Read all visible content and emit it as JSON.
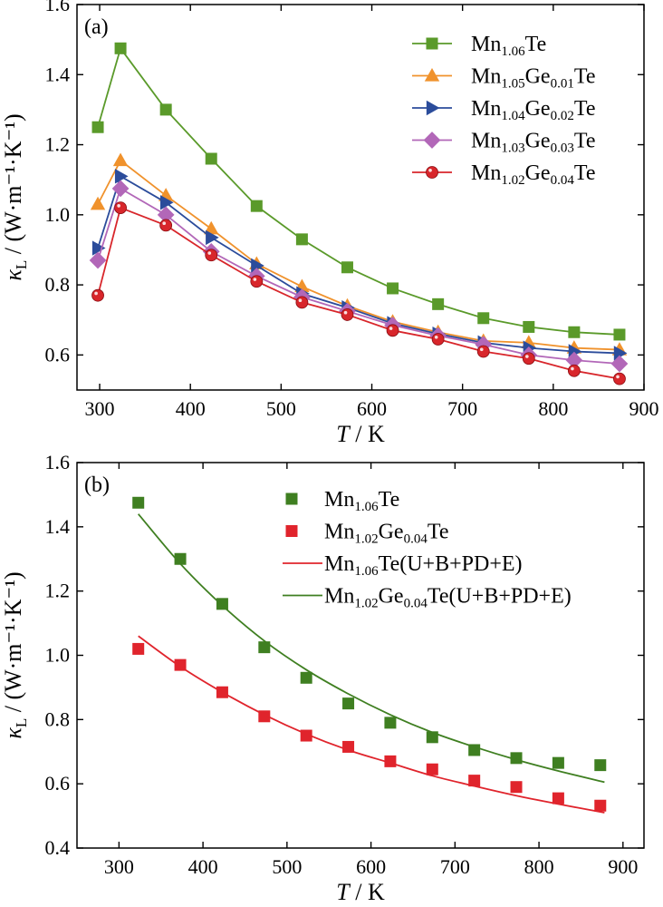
{
  "chart_data": [
    {
      "panel": "(a)",
      "type": "line",
      "xlabel": {
        "var": "T",
        "unit": " / K"
      },
      "ylabel": {
        "var": "κ",
        "sub": "L",
        "unit": " / (W·m⁻¹·K⁻¹)"
      },
      "xlim": [
        275,
        900
      ],
      "ylim": [
        0.5,
        1.6
      ],
      "xticks": [
        300,
        400,
        500,
        600,
        700,
        800,
        900
      ],
      "yticks": [
        0.6,
        0.8,
        1.0,
        1.2,
        1.4,
        1.6
      ],
      "legend_position": "top-right",
      "series": [
        {
          "name": "Mn1.06Te",
          "legend": [
            [
              "Mn",
              ""
            ],
            [
              "1.06",
              "sub"
            ],
            [
              "Te",
              ""
            ]
          ],
          "color": "#5a9a2a",
          "marker": "square",
          "x": [
            298,
            323,
            373,
            423,
            473,
            523,
            573,
            623,
            673,
            723,
            773,
            823,
            873
          ],
          "y": [
            1.25,
            1.475,
            1.3,
            1.16,
            1.025,
            0.93,
            0.85,
            0.79,
            0.745,
            0.705,
            0.68,
            0.665,
            0.658
          ]
        },
        {
          "name": "Mn1.05Ge0.01Te",
          "legend": [
            [
              "Mn",
              ""
            ],
            [
              "1.05",
              "sub"
            ],
            [
              "Ge",
              ""
            ],
            [
              "0.01",
              "sub"
            ],
            [
              "Te",
              ""
            ]
          ],
          "color": "#f0922c",
          "marker": "triangle-up",
          "x": [
            298,
            323,
            373,
            423,
            473,
            523,
            573,
            623,
            673,
            723,
            773,
            823,
            873
          ],
          "y": [
            1.03,
            1.155,
            1.055,
            0.96,
            0.86,
            0.795,
            0.74,
            0.695,
            0.665,
            0.64,
            0.635,
            0.62,
            0.615
          ]
        },
        {
          "name": "Mn1.04Ge0.02Te",
          "legend": [
            [
              "Mn",
              ""
            ],
            [
              "1.04",
              "sub"
            ],
            [
              "Ge",
              ""
            ],
            [
              "0.02",
              "sub"
            ],
            [
              "Te",
              ""
            ]
          ],
          "color": "#2b4c9b",
          "marker": "triangle-right",
          "x": [
            298,
            323,
            373,
            423,
            473,
            523,
            573,
            623,
            673,
            723,
            773,
            823,
            873
          ],
          "y": [
            0.905,
            1.11,
            1.035,
            0.935,
            0.855,
            0.775,
            0.735,
            0.69,
            0.66,
            0.635,
            0.62,
            0.61,
            0.605
          ]
        },
        {
          "name": "Mn1.03Ge0.03Te",
          "legend": [
            [
              "Mn",
              ""
            ],
            [
              "1.03",
              "sub"
            ],
            [
              "Ge",
              ""
            ],
            [
              "0.03",
              "sub"
            ],
            [
              "Te",
              ""
            ]
          ],
          "color": "#b267b8",
          "marker": "diamond",
          "x": [
            298,
            323,
            373,
            423,
            473,
            523,
            573,
            623,
            673,
            723,
            773,
            823,
            873
          ],
          "y": [
            0.87,
            1.075,
            1.0,
            0.895,
            0.825,
            0.765,
            0.725,
            0.685,
            0.655,
            0.63,
            0.6,
            0.585,
            0.575
          ]
        },
        {
          "name": "Mn1.02Ge0.04Te",
          "legend": [
            [
              "Mn",
              ""
            ],
            [
              "1.02",
              "sub"
            ],
            [
              "Ge",
              ""
            ],
            [
              "0.04",
              "sub"
            ],
            [
              "Te",
              ""
            ]
          ],
          "color": "#d8262b",
          "marker": "circle",
          "x": [
            298,
            323,
            373,
            423,
            473,
            523,
            573,
            623,
            673,
            723,
            773,
            823,
            873
          ],
          "y": [
            0.77,
            1.02,
            0.97,
            0.885,
            0.81,
            0.75,
            0.715,
            0.67,
            0.645,
            0.61,
            0.59,
            0.555,
            0.532
          ]
        }
      ]
    },
    {
      "panel": "(b)",
      "type": "scatter",
      "xlabel": {
        "var": "T",
        "unit": " / K"
      },
      "ylabel": {
        "var": "κ",
        "sub": "L",
        "unit": " / (W·m⁻¹·K⁻¹)"
      },
      "xlim": [
        250,
        925
      ],
      "ylim": [
        0.4,
        1.6
      ],
      "xticks": [
        300,
        400,
        500,
        600,
        700,
        800,
        900
      ],
      "yticks": [
        0.4,
        0.6,
        0.8,
        1.0,
        1.2,
        1.4,
        1.6
      ],
      "legend_position": "top-right",
      "series": [
        {
          "name": "Mn1.06Te",
          "legend": [
            [
              "Mn",
              ""
            ],
            [
              "1.06",
              "sub"
            ],
            [
              "Te",
              ""
            ]
          ],
          "color": "#3f7f21",
          "marker": "square",
          "style": "points",
          "x": [
            323,
            373,
            423,
            473,
            523,
            573,
            623,
            673,
            723,
            773,
            823,
            873
          ],
          "y": [
            1.475,
            1.3,
            1.16,
            1.025,
            0.93,
            0.85,
            0.79,
            0.745,
            0.705,
            0.68,
            0.665,
            0.658
          ]
        },
        {
          "name": "Mn1.02Ge0.04Te",
          "legend": [
            [
              "Mn",
              ""
            ],
            [
              "1.02",
              "sub"
            ],
            [
              "Ge",
              ""
            ],
            [
              "0.04",
              "sub"
            ],
            [
              "Te",
              ""
            ]
          ],
          "color": "#e0242c",
          "marker": "square",
          "style": "points",
          "x": [
            323,
            373,
            423,
            473,
            523,
            573,
            623,
            673,
            723,
            773,
            823,
            873
          ],
          "y": [
            1.02,
            0.97,
            0.885,
            0.81,
            0.75,
            0.715,
            0.67,
            0.645,
            0.61,
            0.59,
            0.555,
            0.532
          ]
        },
        {
          "name": "Mn1.06Te(U+B+PD+E)",
          "legend": [
            [
              "Mn",
              ""
            ],
            [
              "1.06",
              "sub"
            ],
            [
              "Te(U+B+PD+E)",
              ""
            ]
          ],
          "color": "#e0242c",
          "marker": "none",
          "style": "line",
          "x": [
            323,
            373,
            423,
            473,
            523,
            573,
            623,
            673,
            723,
            773,
            823,
            878
          ],
          "y": [
            1.06,
            0.965,
            0.885,
            0.815,
            0.755,
            0.705,
            0.665,
            0.625,
            0.593,
            0.563,
            0.537,
            0.51
          ]
        },
        {
          "name": "Mn1.02Ge0.04Te(U+B+PD+E)",
          "legend": [
            [
              "Mn",
              ""
            ],
            [
              "1.02",
              "sub"
            ],
            [
              "Ge",
              ""
            ],
            [
              "0.04",
              "sub"
            ],
            [
              "Te(U+B+PD+E)",
              ""
            ]
          ],
          "color": "#3f7f21",
          "marker": "none",
          "style": "line",
          "x": [
            323,
            373,
            423,
            473,
            523,
            573,
            623,
            673,
            723,
            773,
            823,
            878
          ],
          "y": [
            1.44,
            1.285,
            1.155,
            1.045,
            0.955,
            0.88,
            0.815,
            0.76,
            0.715,
            0.675,
            0.64,
            0.605
          ]
        }
      ]
    }
  ]
}
